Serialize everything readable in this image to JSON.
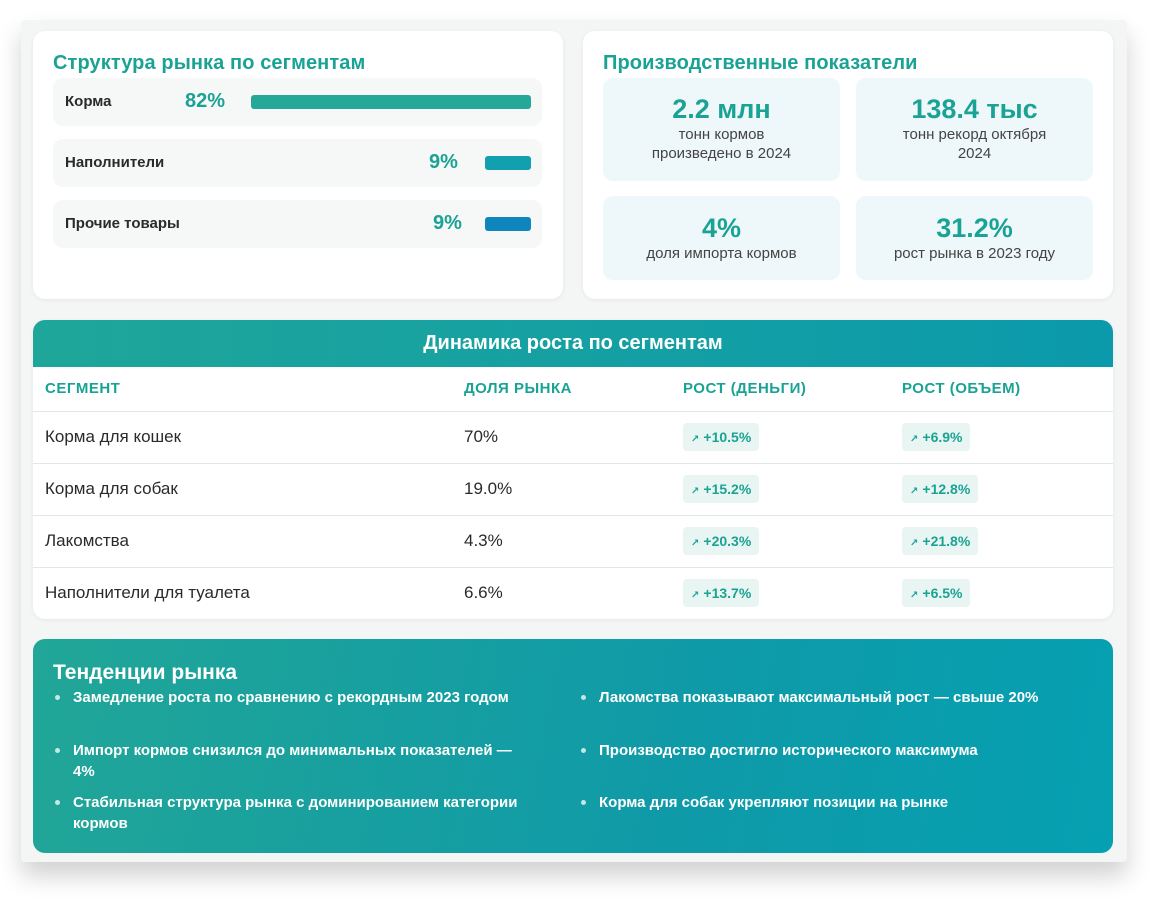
{
  "structure": {
    "title": "Структура рынка по сегментам",
    "rows": [
      {
        "name": "Корма",
        "percent": "82%",
        "share": 82,
        "color": "#25a898"
      },
      {
        "name": "Наполнители",
        "percent": "9%",
        "share": 9,
        "color": "#12a0b1"
      },
      {
        "name": "Прочие товары",
        "percent": "9%",
        "share": 9,
        "color": "#0e85bd"
      }
    ]
  },
  "production": {
    "title": "Производственные показатели",
    "stats": [
      {
        "value": "2.2 млн",
        "label": "тонн кормов произведено в 2024"
      },
      {
        "value": "138.4 тыс",
        "label": "тонн рекорд октября 2024"
      },
      {
        "value": "4%",
        "label": "доля импорта кормов"
      },
      {
        "value": "31.2%",
        "label": "рост рынка в 2023 году"
      }
    ]
  },
  "growth": {
    "title": "Динамика роста по сегментам",
    "columns": [
      "СЕГМЕНТ",
      "ДОЛЯ РЫНКА",
      "РОСТ (ДЕНЬГИ)",
      "РОСТ (ОБЪЕМ)"
    ],
    "arrow": "↗",
    "rows": [
      {
        "segment": "Корма для кошек",
        "share": "70%",
        "money": "+10.5%",
        "volume": "+6.9%"
      },
      {
        "segment": "Корма для собак",
        "share": "19.0%",
        "money": "+15.2%",
        "volume": "+12.8%"
      },
      {
        "segment": "Лакомства",
        "share": "4.3%",
        "money": "+20.3%",
        "volume": "+21.8%"
      },
      {
        "segment": "Наполнители для туалета",
        "share": "6.6%",
        "money": "+13.7%",
        "volume": "+6.5%"
      }
    ]
  },
  "trends": {
    "title": "Тенденции рынка",
    "items": [
      "Замедление роста по сравнению с рекордным 2023 годом",
      "Лакомства показывают максимальный рост — свыше 20%",
      "Импорт кормов снизился до минимальных показателей — 4%",
      "Производство достигло исторического максимума",
      "Стабильная структура рынка с доминированием категории кормов",
      "Корма для собак укрепляют позиции на рынке"
    ]
  }
}
